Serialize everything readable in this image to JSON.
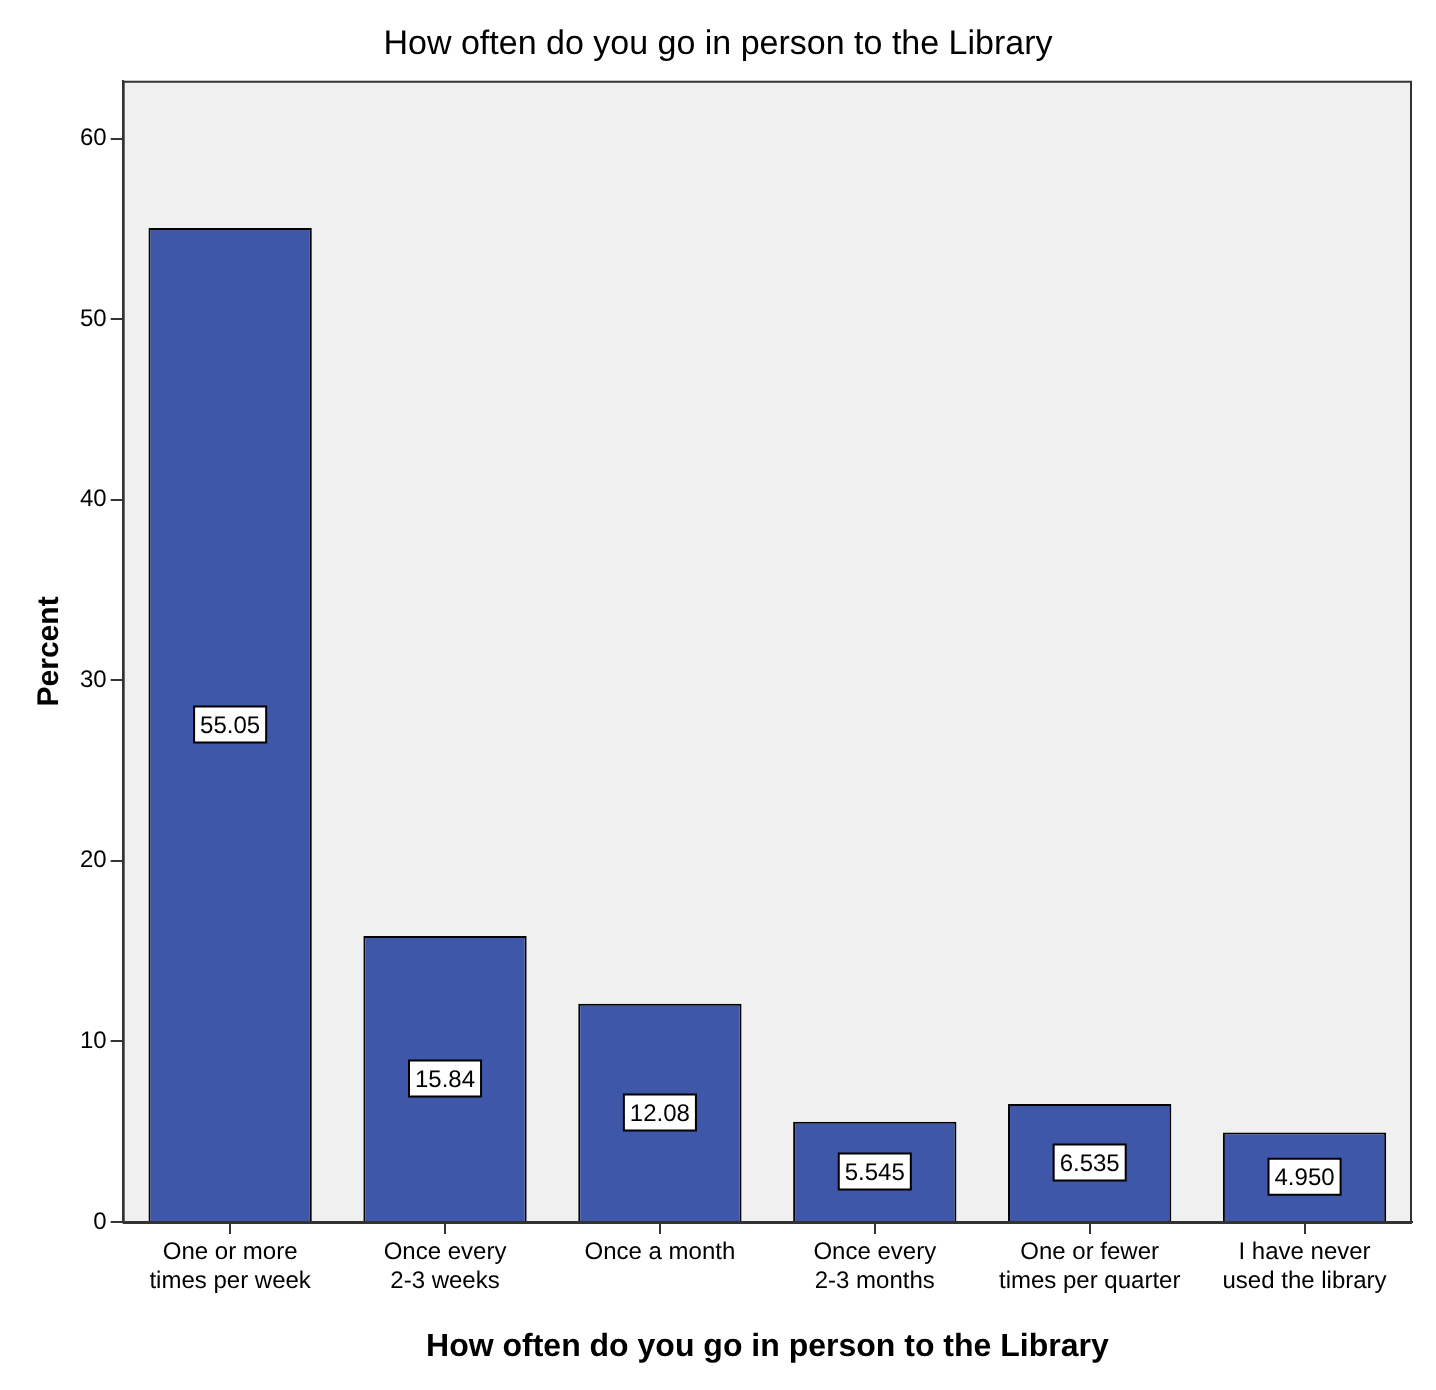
{
  "chart_data": {
    "type": "bar",
    "title": "How often do you go in person to the Library",
    "xlabel": "How often do you go in person to the Library",
    "ylabel": "Percent",
    "categories": [
      "One or more times per week",
      "Once every 2-3 weeks",
      "Once a month",
      "Once every 2-3 months",
      "One or fewer times per quarter",
      "I have never used the library"
    ],
    "values": [
      55.05,
      15.84,
      12.08,
      5.545,
      6.535,
      4.95
    ],
    "value_labels": [
      "55.05",
      "15.84",
      "12.08",
      "5.545",
      "6.535",
      "4.950"
    ],
    "color": "#3f57a8",
    "ylim": [
      0,
      63.2
    ],
    "yticks": [
      0,
      10,
      20,
      30,
      40,
      50,
      60
    ],
    "grid": false,
    "legend": false
  }
}
